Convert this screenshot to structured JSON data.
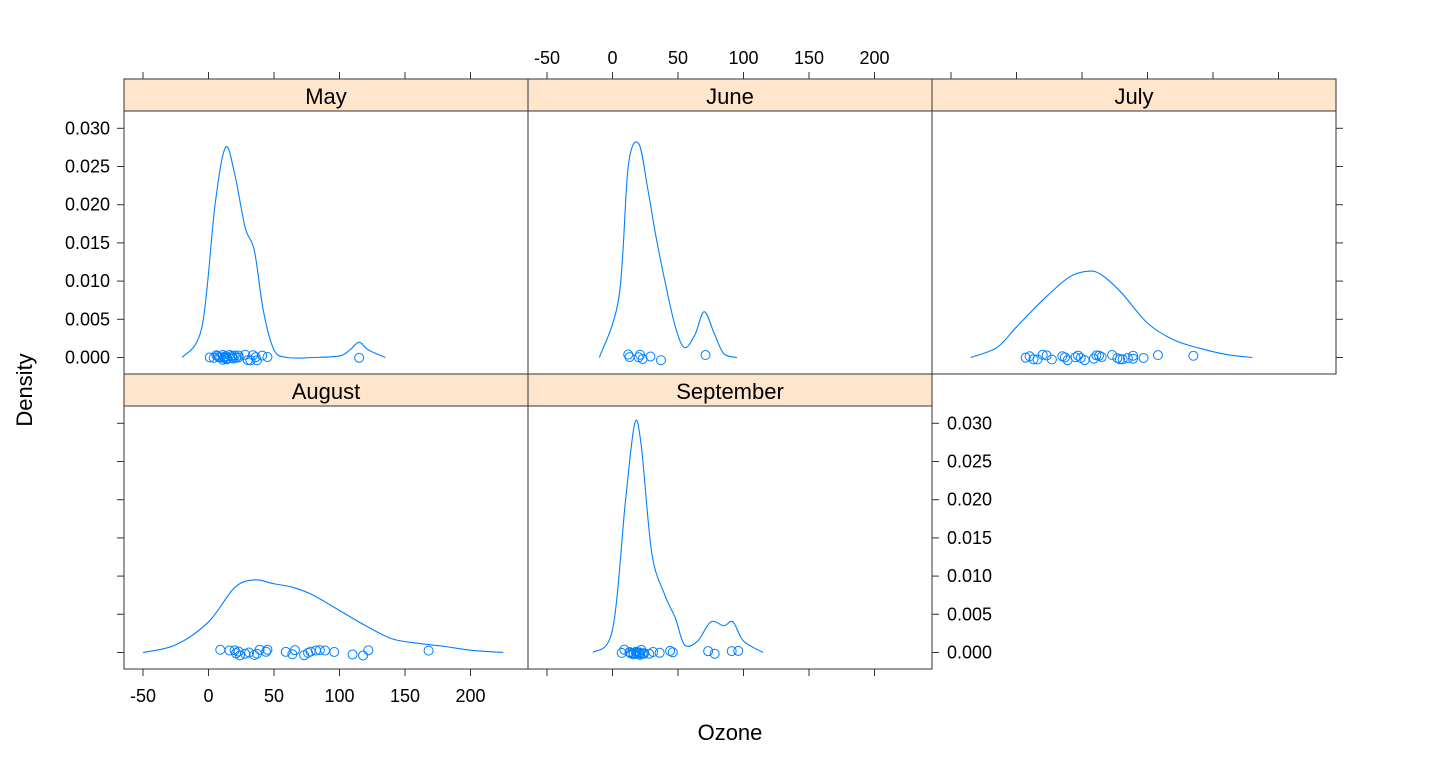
{
  "chart_data": {
    "type": "line",
    "subtype": "lattice densityplot",
    "title": "",
    "xlabel": "Ozone",
    "ylabel": "Density",
    "xlim": [
      -60,
      240
    ],
    "ylim": [
      -0.002,
      0.032
    ],
    "x_ticks": [
      -50,
      0,
      50,
      100,
      150,
      200
    ],
    "x_tick_labels": [
      "-50",
      "0",
      "50",
      "100",
      "150",
      "200"
    ],
    "y_ticks": [
      0.0,
      0.005,
      0.01,
      0.015,
      0.02,
      0.025,
      0.03
    ],
    "y_tick_labels": [
      "0.000",
      "0.005",
      "0.010",
      "0.015",
      "0.020",
      "0.025",
      "0.030"
    ],
    "strip_color": "#ffe5cc",
    "line_color": "#0080ff",
    "grid": false,
    "legend": null,
    "panels": [
      {
        "label": "May",
        "curve_x": [
          -20,
          -5,
          5,
          13,
          20,
          28,
          35,
          42,
          50,
          60,
          80,
          100,
          108,
          115,
          122,
          135
        ],
        "curve_y": [
          0.0,
          0.004,
          0.02,
          0.0275,
          0.024,
          0.017,
          0.014,
          0.006,
          0.001,
          0.0,
          0.0,
          0.0002,
          0.001,
          0.002,
          0.001,
          0.0
        ],
        "points": [
          1,
          4,
          6,
          7,
          8,
          9,
          11,
          11,
          12,
          12,
          13,
          14,
          14,
          16,
          18,
          18,
          19,
          20,
          21,
          23,
          23,
          28,
          30,
          32,
          34,
          36,
          37,
          41,
          45,
          115
        ]
      },
      {
        "label": "June",
        "curve_x": [
          -10,
          5,
          12,
          20,
          27,
          33,
          40,
          48,
          55,
          63,
          70,
          78,
          85,
          95
        ],
        "curve_y": [
          0.0,
          0.008,
          0.025,
          0.028,
          0.022,
          0.016,
          0.01,
          0.004,
          0.0013,
          0.003,
          0.006,
          0.003,
          0.0005,
          0.0
        ],
        "points": [
          12,
          13,
          20,
          21,
          23,
          29,
          37,
          71
        ]
      },
      {
        "label": "July",
        "curve_x": [
          -35,
          -15,
          0,
          20,
          40,
          55,
          65,
          80,
          100,
          120,
          140,
          160,
          180
        ],
        "curve_y": [
          0.0,
          0.0013,
          0.004,
          0.0075,
          0.0105,
          0.0113,
          0.0108,
          0.0085,
          0.0045,
          0.0023,
          0.0012,
          0.0004,
          0.0
        ],
        "points": [
          7,
          10,
          13,
          16,
          20,
          23,
          27,
          35,
          37,
          39,
          45,
          47,
          49,
          52,
          59,
          61,
          63,
          65,
          73,
          77,
          79,
          81,
          85,
          89,
          89,
          97,
          108,
          135
        ]
      },
      {
        "label": "August",
        "curve_x": [
          -50,
          -25,
          0,
          20,
          35,
          50,
          65,
          80,
          100,
          120,
          140,
          160,
          180,
          200,
          225
        ],
        "curve_y": [
          0.0,
          0.001,
          0.004,
          0.0085,
          0.0095,
          0.009,
          0.0085,
          0.0075,
          0.0055,
          0.0035,
          0.0018,
          0.0012,
          0.0008,
          0.0003,
          0.0
        ],
        "points": [
          9,
          16,
          20,
          21,
          23,
          24,
          28,
          31,
          35,
          37,
          39,
          44,
          45,
          59,
          64,
          66,
          73,
          76,
          78,
          82,
          85,
          89,
          96,
          110,
          118,
          122,
          168
        ]
      },
      {
        "label": "September",
        "curve_x": [
          -15,
          0,
          10,
          17,
          22,
          30,
          40,
          48,
          55,
          65,
          75,
          85,
          92,
          100,
          115
        ],
        "curve_y": [
          0.0,
          0.003,
          0.02,
          0.03,
          0.027,
          0.013,
          0.0075,
          0.0045,
          0.001,
          0.0015,
          0.004,
          0.0035,
          0.004,
          0.0015,
          0.0
        ],
        "points": [
          7,
          9,
          13,
          13,
          14,
          16,
          16,
          18,
          18,
          19,
          20,
          20,
          21,
          21,
          21,
          22,
          23,
          24,
          24,
          28,
          31,
          36,
          44,
          46,
          73,
          78,
          91,
          96
        ]
      }
    ]
  },
  "axes": {
    "xlabel": "Ozone",
    "ylabel": "Density",
    "x_tick_labels": [
      "-50",
      "0",
      "50",
      "100",
      "150",
      "200"
    ],
    "y_tick_labels": [
      "0.000",
      "0.005",
      "0.010",
      "0.015",
      "0.020",
      "0.025",
      "0.030"
    ]
  },
  "panels": {
    "may": {
      "label": "May"
    },
    "june": {
      "label": "June"
    },
    "july": {
      "label": "July"
    },
    "august": {
      "label": "August"
    },
    "september": {
      "label": "September"
    }
  }
}
